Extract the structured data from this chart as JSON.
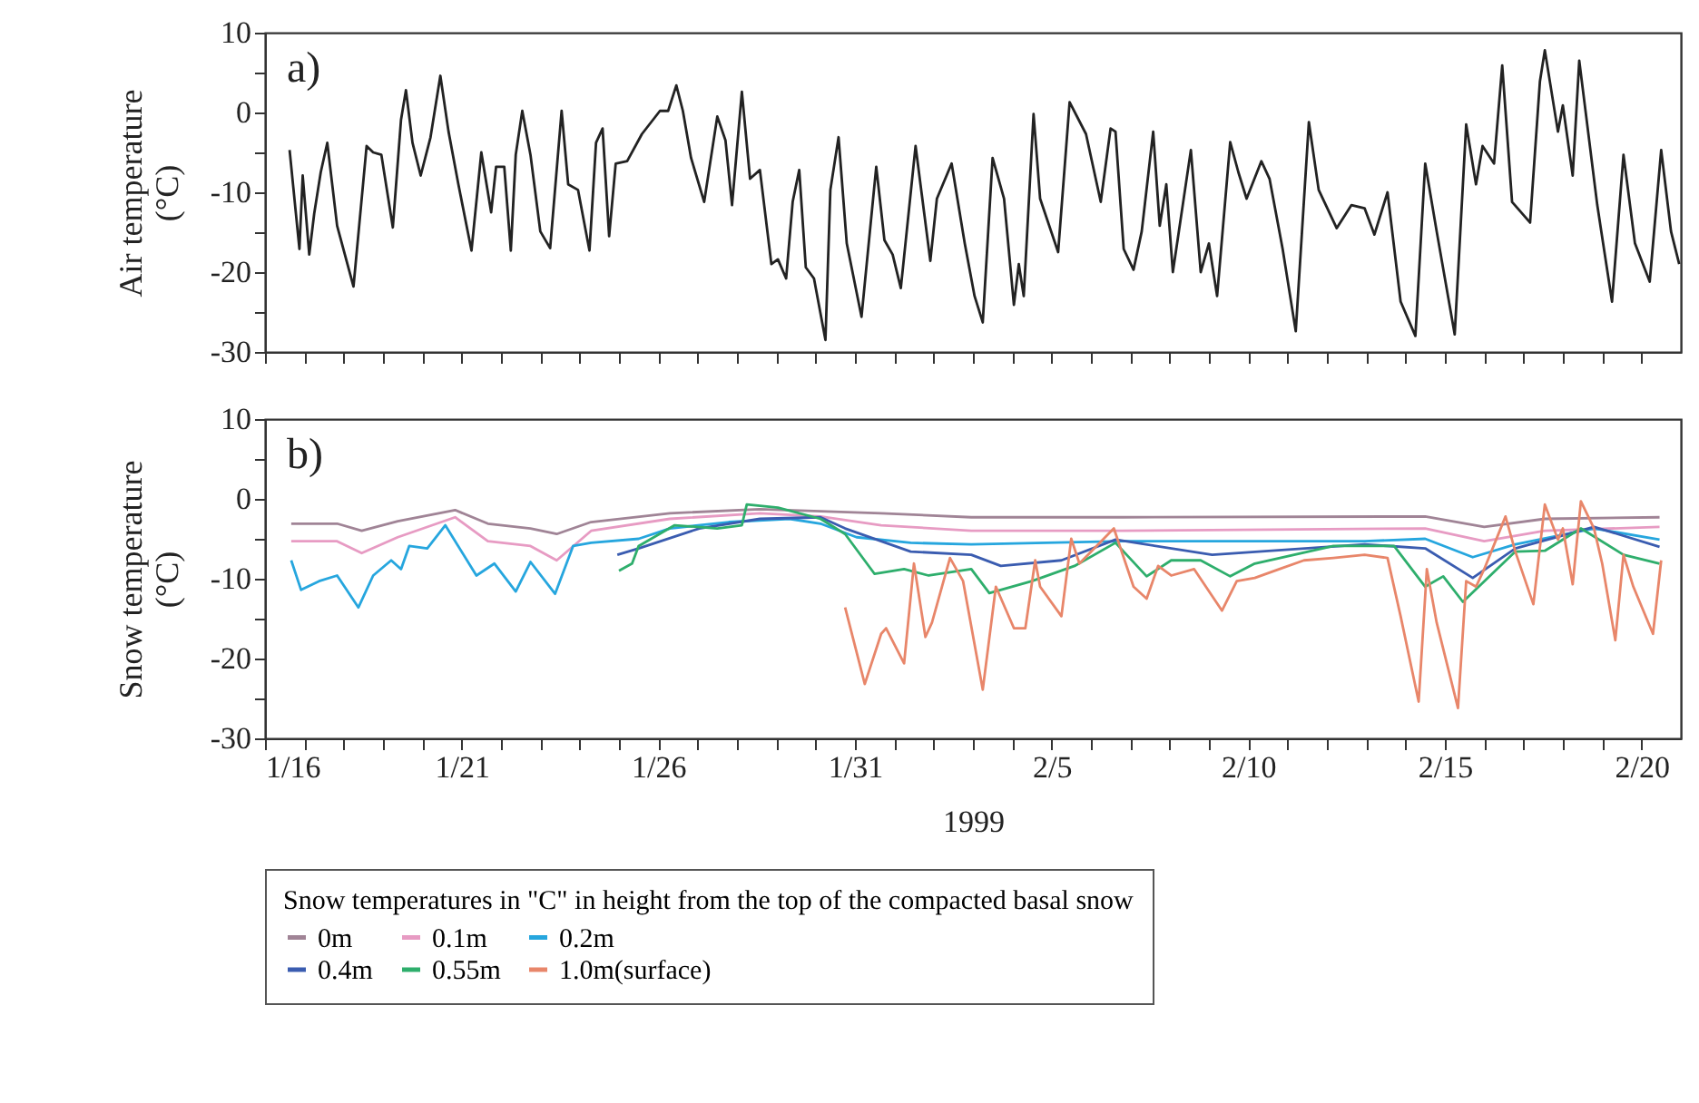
{
  "chart_data": [
    {
      "type": "line",
      "ylabel": "Air temperature (°C)",
      "annotations": [
        "a)"
      ],
      "xlim": [
        "1999-01-16",
        "1999-02-21"
      ],
      "xticks": [
        {
          "value": "1999-01-16",
          "label": null
        },
        {
          "value": "1999-01-17",
          "label": null
        },
        {
          "value": "1999-01-18",
          "label": null
        },
        {
          "value": "1999-01-19",
          "label": null
        },
        {
          "value": "1999-01-20",
          "label": null
        },
        {
          "value": "1999-01-21",
          "label": null
        },
        {
          "value": "1999-01-22",
          "label": null
        },
        {
          "value": "1999-01-23",
          "label": null
        },
        {
          "value": "1999-01-24",
          "label": null
        },
        {
          "value": "1999-01-25",
          "label": null
        },
        {
          "value": "1999-01-26",
          "label": null
        },
        {
          "value": "1999-01-27",
          "label": null
        },
        {
          "value": "1999-01-28",
          "label": null
        },
        {
          "value": "1999-01-29",
          "label": null
        },
        {
          "value": "1999-01-30",
          "label": null
        },
        {
          "value": "1999-01-31",
          "label": null
        },
        {
          "value": "1999-02-01",
          "label": null
        },
        {
          "value": "1999-02-02",
          "label": null
        },
        {
          "value": "1999-02-03",
          "label": null
        },
        {
          "value": "1999-02-04",
          "label": null
        },
        {
          "value": "1999-02-05",
          "label": null
        },
        {
          "value": "1999-02-06",
          "label": null
        },
        {
          "value": "1999-02-07",
          "label": null
        },
        {
          "value": "1999-02-08",
          "label": null
        },
        {
          "value": "1999-02-09",
          "label": null
        },
        {
          "value": "1999-02-10",
          "label": null
        },
        {
          "value": "1999-02-11",
          "label": null
        },
        {
          "value": "1999-02-12",
          "label": null
        },
        {
          "value": "1999-02-13",
          "label": null
        },
        {
          "value": "1999-02-14",
          "label": null
        },
        {
          "value": "1999-02-15",
          "label": null
        },
        {
          "value": "1999-02-16",
          "label": null
        },
        {
          "value": "1999-02-17",
          "label": null
        },
        {
          "value": "1999-02-18",
          "label": null
        },
        {
          "value": "1999-02-19",
          "label": null
        },
        {
          "value": "1999-02-20",
          "label": null
        }
      ],
      "ylim": [
        -30,
        10
      ],
      "yticks": [
        -30,
        {
          "value": -25,
          "label": null
        },
        -20,
        {
          "value": -15,
          "label": null
        },
        -10,
        {
          "value": -5,
          "label": null
        },
        0,
        {
          "value": 5,
          "label": null
        },
        10
      ],
      "tick_labels": "y",
      "grid": false,
      "legend": false,
      "series": [
        {
          "color": "#222222",
          "x": [
            "1999-01-16T15:00",
            "1999-01-16T21:00",
            "1999-01-16T23:00",
            "1999-01-17T03:00",
            "1999-01-17T06:00",
            "1999-01-17T10:00",
            "1999-01-17T14:00",
            "1999-01-17T20:00",
            "1999-01-18T06:00",
            "1999-01-18T14:00",
            "1999-01-18T18:00",
            "1999-01-18T23:00",
            "1999-01-19T06:00",
            "1999-01-19T11:00",
            "1999-01-19T14:00",
            "1999-01-19T18:00",
            "1999-01-19T23:00",
            "1999-01-20T05:00",
            "1999-01-20T11:00",
            "1999-01-20T16:00",
            "1999-01-20T22:00",
            "1999-01-21T06:00",
            "1999-01-21T12:00",
            "1999-01-21T18:00",
            "1999-01-21T21:00",
            "1999-01-22T02:00",
            "1999-01-22T06:00",
            "1999-01-22T09:00",
            "1999-01-22T13:00",
            "1999-01-22T18:00",
            "1999-01-23T00:00",
            "1999-01-23T06:00",
            "1999-01-23T13:00",
            "1999-01-23T17:00",
            "1999-01-23T23:00",
            "1999-01-24T06:00",
            "1999-01-24T10:00",
            "1999-01-24T14:00",
            "1999-01-24T18:00",
            "1999-01-24T22:00",
            "1999-01-25T05:00",
            "1999-01-25T14:00",
            "1999-01-26T01:00",
            "1999-01-26T06:00",
            "1999-01-26T11:00",
            "1999-01-26T15:00",
            "1999-01-26T20:00",
            "1999-01-27T04:00",
            "1999-01-27T12:00",
            "1999-01-27T17:00",
            "1999-01-27T21:00",
            "1999-01-28T03:00",
            "1999-01-28T08:00",
            "1999-01-28T14:00",
            "1999-01-28T21:00",
            "1999-01-29T01:00",
            "1999-01-29T06:00",
            "1999-01-29T10:00",
            "1999-01-29T14:00",
            "1999-01-29T18:00",
            "1999-01-29T23:00",
            "1999-01-30T06:00",
            "1999-01-30T09:00",
            "1999-01-30T14:00",
            "1999-01-30T19:00",
            "1999-01-31T04:00",
            "1999-01-31T13:00",
            "1999-01-31T18:00",
            "1999-01-31T23:00",
            "1999-02-01T04:00",
            "1999-02-01T13:00",
            "1999-02-01T22:00",
            "1999-02-02T02:00",
            "1999-02-02T11:00",
            "1999-02-02T19:00",
            "1999-02-03T01:00",
            "1999-02-03T06:00",
            "1999-02-03T12:00",
            "1999-02-03T19:00",
            "1999-02-04T01:00",
            "1999-02-04T04:00",
            "1999-02-04T07:00",
            "1999-02-04T13:00",
            "1999-02-04T17:00",
            "1999-02-05T04:00",
            "1999-02-05T11:00",
            "1999-02-05T21:00",
            "1999-02-06T06:00",
            "1999-02-06T12:00",
            "1999-02-06T15:00",
            "1999-02-06T20:00",
            "1999-02-07T02:00",
            "1999-02-07T07:00",
            "1999-02-07T14:00",
            "1999-02-07T18:00",
            "1999-02-07T22:00",
            "1999-02-08T02:00",
            "1999-02-08T13:00",
            "1999-02-08T19:00",
            "1999-02-09T00:00",
            "1999-02-09T05:00",
            "1999-02-09T13:00",
            "1999-02-09T18:00",
            "1999-02-09T23:00",
            "1999-02-10T08:00",
            "1999-02-10T13:00",
            "1999-02-10T21:00",
            "1999-02-11T05:00",
            "1999-02-11T13:00",
            "1999-02-11T19:00",
            "1999-02-12T06:00",
            "1999-02-12T15:00",
            "1999-02-12T23:00",
            "1999-02-13T05:00",
            "1999-02-13T13:00",
            "1999-02-13T21:00",
            "1999-02-14T06:00",
            "1999-02-14T12:00",
            "1999-02-14T19:00",
            "1999-02-15T06:00",
            "1999-02-15T13:00",
            "1999-02-15T19:00",
            "1999-02-15T23:00",
            "1999-02-16T06:00",
            "1999-02-16T11:00",
            "1999-02-16T17:00",
            "1999-02-17T04:00",
            "1999-02-17T10:00",
            "1999-02-17T13:00",
            "1999-02-17T21:00",
            "1999-02-18T00:00",
            "1999-02-18T06:00",
            "1999-02-18T10:00",
            "1999-02-18T21:00",
            "1999-02-19T06:00",
            "1999-02-19T13:00",
            "1999-02-19T20:00",
            "1999-02-20T05:00",
            "1999-02-20T12:00",
            "1999-02-20T18:00",
            "1999-02-20T23:00"
          ],
          "values": [
            -4.7,
            -17.1,
            -7.9,
            -17.8,
            -12.7,
            -7.5,
            -3.8,
            -14.2,
            -21.8,
            -4.2,
            -5,
            -5.3,
            -14.4,
            -0.9,
            2.8,
            -3.8,
            -7.9,
            -3.1,
            4.6,
            -2.4,
            -9,
            -17.3,
            -5,
            -12.5,
            -6.8,
            -6.8,
            -17.3,
            -5.3,
            0.2,
            -5.3,
            -14.9,
            -17,
            0.2,
            -9,
            -9.7,
            -17.3,
            -3.8,
            -2,
            -15.5,
            -6.4,
            -6.1,
            -2.7,
            0.2,
            0.2,
            3.4,
            0.2,
            -5.7,
            -11.2,
            -0.5,
            -3.5,
            -11.6,
            2.6,
            -8.3,
            -7.2,
            -19,
            -18.4,
            -20.8,
            -11.2,
            -7.2,
            -19.4,
            -20.8,
            -28.5,
            -9.7,
            -3.1,
            -16.4,
            -25.6,
            -6.8,
            -16,
            -17.8,
            -22,
            -4.2,
            -18.6,
            -10.8,
            -6.4,
            -16.4,
            -23,
            -26.3,
            -5.7,
            -10.8,
            -24.1,
            -19,
            -23,
            -0.2,
            -10.8,
            -17.5,
            1.3,
            -2.7,
            -11.2,
            -2,
            -2.4,
            -17.1,
            -19.7,
            -14.9,
            -2.4,
            -14.2,
            -9,
            -20,
            -4.7,
            -20,
            -16.4,
            -23,
            -3.7,
            -7.5,
            -10.8,
            -6.1,
            -8.3,
            -17.1,
            -27.4,
            -1.2,
            -9.7,
            -14.5,
            -11.6,
            -12,
            -15.3,
            -10,
            -23.7,
            -28,
            -6.4,
            -14.9,
            -27.8,
            -1.5,
            -9,
            -4.2,
            -6.4,
            5.9,
            -11.2,
            -13.8,
            3.9,
            7.8,
            -2.4,
            0.9,
            -7.9,
            6.5,
            -11.6,
            -23.7,
            -5.3,
            -16.4,
            -21.2,
            -4.7,
            -14.9,
            -19
          ]
        }
      ]
    },
    {
      "type": "line",
      "ylabel": "Snow temperature (°C)",
      "xlabel": "1999",
      "annotations": [
        "b)"
      ],
      "xlim": [
        "1999-01-16",
        "1999-02-21"
      ],
      "xticks": [
        {
          "value": "1999-01-16",
          "label": "1/16"
        },
        {
          "value": "1999-01-17",
          "label": null
        },
        {
          "value": "1999-01-18",
          "label": null
        },
        {
          "value": "1999-01-19",
          "label": null
        },
        {
          "value": "1999-01-20",
          "label": null
        },
        {
          "value": "1999-01-21",
          "label": "1/21"
        },
        {
          "value": "1999-01-22",
          "label": null
        },
        {
          "value": "1999-01-23",
          "label": null
        },
        {
          "value": "1999-01-24",
          "label": null
        },
        {
          "value": "1999-01-25",
          "label": null
        },
        {
          "value": "1999-01-26",
          "label": "1/26"
        },
        {
          "value": "1999-01-27",
          "label": null
        },
        {
          "value": "1999-01-28",
          "label": null
        },
        {
          "value": "1999-01-29",
          "label": null
        },
        {
          "value": "1999-01-30",
          "label": null
        },
        {
          "value": "1999-01-31",
          "label": "1/31"
        },
        {
          "value": "1999-02-01",
          "label": null
        },
        {
          "value": "1999-02-02",
          "label": null
        },
        {
          "value": "1999-02-03",
          "label": null
        },
        {
          "value": "1999-02-04",
          "label": null
        },
        {
          "value": "1999-02-05",
          "label": "2/5"
        },
        {
          "value": "1999-02-06",
          "label": null
        },
        {
          "value": "1999-02-07",
          "label": null
        },
        {
          "value": "1999-02-08",
          "label": null
        },
        {
          "value": "1999-02-09",
          "label": null
        },
        {
          "value": "1999-02-10",
          "label": "2/10"
        },
        {
          "value": "1999-02-11",
          "label": null
        },
        {
          "value": "1999-02-12",
          "label": null
        },
        {
          "value": "1999-02-13",
          "label": null
        },
        {
          "value": "1999-02-14",
          "label": null
        },
        {
          "value": "1999-02-15",
          "label": "2/15"
        },
        {
          "value": "1999-02-16",
          "label": null
        },
        {
          "value": "1999-02-17",
          "label": null
        },
        {
          "value": "1999-02-18",
          "label": null
        },
        {
          "value": "1999-02-19",
          "label": null
        },
        {
          "value": "1999-02-20",
          "label": "2/20"
        }
      ],
      "ylim": [
        -30,
        10
      ],
      "yticks": [
        -30,
        {
          "value": -25,
          "label": null
        },
        -20,
        {
          "value": -15,
          "label": null
        },
        -10,
        {
          "value": -5,
          "label": null
        },
        0,
        {
          "value": 5,
          "label": null
        },
        10
      ],
      "grid": false,
      "legend": "bottom",
      "legend_title": "Snow temperatures in \"C\" in height from the top of the compacted basal snow",
      "series": [
        {
          "name": "0m",
          "color": "#a08496",
          "x": [
            "1999-01-16T16:00",
            "1999-01-17T20:00",
            "1999-01-18T11:00",
            "1999-01-19T09:00",
            "1999-01-20T20:00",
            "1999-01-21T16:00",
            "1999-01-22T18:00",
            "1999-01-23T10:00",
            "1999-01-24T07:00",
            "1999-01-26T07:00",
            "1999-01-28T14:00",
            "1999-01-31T16:00",
            "1999-02-02T23:00",
            "1999-02-06T19:00",
            "1999-02-14T12:00",
            "1999-02-16T00:00",
            "1999-02-17T13:00",
            "1999-02-20T11:00"
          ],
          "values": [
            -3.1,
            -3.1,
            -4.0,
            -2.8,
            -1.4,
            -3.1,
            -3.7,
            -4.4,
            -2.9,
            -1.8,
            -1.3,
            -1.8,
            -2.3,
            -2.3,
            -2.2,
            -3.5,
            -2.5,
            -2.3
          ]
        },
        {
          "name": "0.1m",
          "color": "#e79bc3",
          "x": [
            "1999-01-16T16:00",
            "1999-01-17T20:00",
            "1999-01-18T11:00",
            "1999-01-19T09:00",
            "1999-01-20T20:00",
            "1999-01-21T16:00",
            "1999-01-22T18:00",
            "1999-01-23T10:00",
            "1999-01-24T07:00",
            "1999-01-26T07:00",
            "1999-01-28T14:00",
            "1999-01-30T03:00",
            "1999-01-31T16:00",
            "1999-02-02T23:00",
            "1999-02-06T19:00",
            "1999-02-14T12:00",
            "1999-02-16T00:00",
            "1999-02-17T13:00",
            "1999-02-20T11:00"
          ],
          "values": [
            -5.3,
            -5.3,
            -6.8,
            -4.8,
            -2.3,
            -5.3,
            -5.9,
            -7.7,
            -4.0,
            -2.5,
            -1.8,
            -2.2,
            -3.3,
            -4.0,
            -4.0,
            -3.7,
            -5.3,
            -4.0,
            -3.5
          ]
        },
        {
          "name": "0.2m",
          "color": "#26a6de",
          "x": [
            "1999-01-16T16:00",
            "1999-01-16T22:00",
            "1999-01-17T09:00",
            "1999-01-17T20:00",
            "1999-01-18T09:00",
            "1999-01-18T18:00",
            "1999-01-19T05:00",
            "1999-01-19T11:00",
            "1999-01-19T16:00",
            "1999-01-20T03:00",
            "1999-01-20T14:00",
            "1999-01-21T09:00",
            "1999-01-21T20:00",
            "1999-01-22T09:00",
            "1999-01-22T18:00",
            "1999-01-23T09:00",
            "1999-01-23T20:00",
            "1999-01-24T07:00",
            "1999-01-25T12:00",
            "1999-01-26T07:00",
            "1999-01-27T19:00",
            "1999-01-29T08:00",
            "1999-01-30T03:00",
            "1999-01-31T01:00",
            "1999-02-01T10:00",
            "1999-02-02T23:00",
            "1999-02-06T19:00",
            "1999-02-12T23:00",
            "1999-02-14T12:00",
            "1999-02-15T17:00",
            "1999-02-16T19:00",
            "1999-02-18T19:00",
            "1999-02-20T11:00"
          ],
          "values": [
            -7.7,
            -11.4,
            -10.3,
            -9.6,
            -13.6,
            -9.6,
            -7.7,
            -8.8,
            -5.9,
            -6.2,
            -3.3,
            -9.6,
            -8.1,
            -11.6,
            -7.9,
            -11.9,
            -5.9,
            -5.5,
            -5.0,
            -3.7,
            -2.9,
            -2.5,
            -3.1,
            -4.8,
            -5.5,
            -5.7,
            -5.3,
            -5.3,
            -5.0,
            -7.3,
            -5.7,
            -3.7,
            -5.1
          ]
        },
        {
          "name": "0.4m",
          "color": "#3a5cb0",
          "x": [
            "1999-01-24T23:00",
            "1999-01-25T12:00",
            "1999-01-27T01:00",
            "1999-01-28T14:00",
            "1999-01-30T03:00",
            "1999-01-30T18:00",
            "1999-02-01T10:00",
            "1999-02-02T23:00",
            "1999-02-03T17:00",
            "1999-02-05T06:00",
            "1999-02-06T15:00",
            "1999-02-09T02:00",
            "1999-02-12T23:00",
            "1999-02-14T12:00",
            "1999-02-15T17:00",
            "1999-02-16T19:00",
            "1999-02-18T19:00",
            "1999-02-20T11:00"
          ],
          "values": [
            -7.0,
            -6.2,
            -3.7,
            -2.5,
            -2.3,
            -3.7,
            -6.6,
            -7.0,
            -8.4,
            -7.7,
            -5.1,
            -7.0,
            -5.7,
            -6.2,
            -9.9,
            -6.2,
            -3.5,
            -6.0
          ]
        },
        {
          "name": "0.55m",
          "color": "#2eae6c",
          "x": [
            "1999-01-25T00:00",
            "1999-01-25T08:00",
            "1999-01-25T12:00",
            "1999-01-26T10:00",
            "1999-01-27T12:00",
            "1999-01-28T03:00",
            "1999-01-28T06:00",
            "1999-01-29T01:00",
            "1999-01-30T03:00",
            "1999-01-30T18:00",
            "1999-01-31T12:00",
            "1999-02-01T06:00",
            "1999-02-01T21:00",
            "1999-02-02T23:00",
            "1999-02-03T10:00",
            "1999-02-04T12:00",
            "1999-02-05T14:00",
            "1999-02-06T15:00",
            "1999-02-07T10:00",
            "1999-02-08T01:00",
            "1999-02-08T19:00",
            "1999-02-09T13:00",
            "1999-02-10T04:00",
            "1999-02-12T04:00",
            "1999-02-13T17:00",
            "1999-02-14T12:00",
            "1999-02-14T23:00",
            "1999-02-15T11:00",
            "1999-02-16T19:00",
            "1999-02-17T13:00",
            "1999-02-18T11:00",
            "1999-02-19T13:00",
            "1999-02-20T11:00"
          ],
          "values": [
            -9.0,
            -8.1,
            -5.9,
            -3.3,
            -3.7,
            -3.3,
            -0.7,
            -1.1,
            -2.5,
            -4.4,
            -9.4,
            -8.8,
            -9.6,
            -8.8,
            -11.8,
            -10.3,
            -8.4,
            -5.5,
            -9.7,
            -7.7,
            -7.7,
            -9.7,
            -8.1,
            -5.9,
            -5.9,
            -11.0,
            -9.7,
            -12.9,
            -6.6,
            -6.5,
            -3.7,
            -7.0,
            -8.1
          ]
        },
        {
          "name": "1.0m(surface)",
          "color": "#e8866a",
          "x": [
            "1999-01-30T18:00",
            "1999-01-31T06:00",
            "1999-01-31T16:00",
            "1999-01-31T19:00",
            "1999-02-01T06:00",
            "1999-02-01T12:00",
            "1999-02-01T19:00",
            "1999-02-01T23:00",
            "1999-02-02T10:00",
            "1999-02-02T18:00",
            "1999-02-03T06:00",
            "1999-02-03T14:00",
            "1999-02-04T01:00",
            "1999-02-04T08:00",
            "1999-02-04T14:00",
            "1999-02-04T17:00",
            "1999-02-05T06:00",
            "1999-02-05T12:00",
            "1999-02-05T17:00",
            "1999-02-06T14:00",
            "1999-02-07T02:00",
            "1999-02-07T10:00",
            "1999-02-07T17:00",
            "1999-02-08T01:00",
            "1999-02-08T15:00",
            "1999-02-09T08:00",
            "1999-02-09T17:00",
            "1999-02-10T04:00",
            "1999-02-10T19:00",
            "1999-02-11T10:00",
            "1999-02-12T04:00",
            "1999-02-12T23:00",
            "1999-02-13T13:00",
            "1999-02-13T21:00",
            "1999-02-14T08:00",
            "1999-02-14T13:00",
            "1999-02-14T19:00",
            "1999-02-15T08:00",
            "1999-02-15T13:00",
            "1999-02-15T19:00",
            "1999-02-16T00:00",
            "1999-02-16T13:00",
            "1999-02-16T19:00",
            "1999-02-17T06:00",
            "1999-02-17T13:00",
            "1999-02-17T21:00",
            "1999-02-18T00:00",
            "1999-02-18T06:00",
            "1999-02-18T11:00",
            "1999-02-18T19:00",
            "1999-02-19T00:00",
            "1999-02-19T08:00",
            "1999-02-19T13:00",
            "1999-02-19T19:00",
            "1999-02-20T07:00",
            "1999-02-20T12:00"
          ],
          "values": [
            -13.6,
            -23.2,
            -16.9,
            -16.2,
            -20.6,
            -8.1,
            -17.3,
            -15.5,
            -7.4,
            -10.3,
            -23.9,
            -11.0,
            -16.2,
            -16.2,
            -7.7,
            -11.0,
            -14.7,
            -5.0,
            -8.1,
            -3.7,
            -11.0,
            -12.5,
            -8.4,
            -9.6,
            -8.8,
            -14.0,
            -10.3,
            -9.9,
            -8.8,
            -7.7,
            -7.4,
            -7.0,
            -7.4,
            -14.7,
            -25.4,
            -8.8,
            -15.5,
            -26.2,
            -10.3,
            -11.0,
            -8.8,
            -2.2,
            -6.6,
            -13.2,
            -0.7,
            -5.1,
            -3.7,
            -10.7,
            -0.3,
            -3.7,
            -8.1,
            -17.7,
            -7.0,
            -11.0,
            -16.9,
            -7.7
          ]
        }
      ]
    }
  ]
}
